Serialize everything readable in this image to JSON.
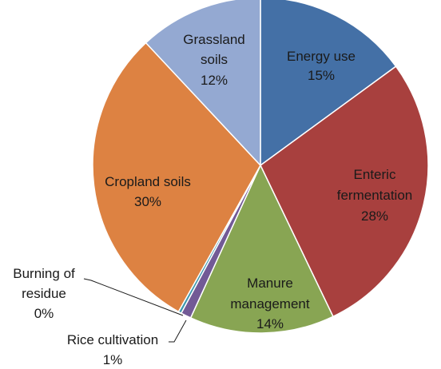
{
  "chart_data": {
    "type": "pie",
    "title": "",
    "slices": [
      {
        "name": "Energy use",
        "value": 15,
        "label": "15%",
        "color": "#4470a6"
      },
      {
        "name": "Enteric fermentation",
        "value": 28,
        "label": "28%",
        "color": "#a8403e"
      },
      {
        "name": "Manure management",
        "value": 14,
        "label": "14%",
        "color": "#88a553"
      },
      {
        "name": "Rice cultivation",
        "value": 1,
        "label": "1%",
        "color": "#725a96"
      },
      {
        "name": "Burning of residue",
        "value": 0,
        "label": "0%",
        "color": "#3d97ad"
      },
      {
        "name": "Cropland soils",
        "value": 30,
        "label": "30%",
        "color": "#dd8242"
      },
      {
        "name": "Grassland soils",
        "value": 12,
        "label": "12%",
        "color": "#94a9d2"
      }
    ]
  }
}
